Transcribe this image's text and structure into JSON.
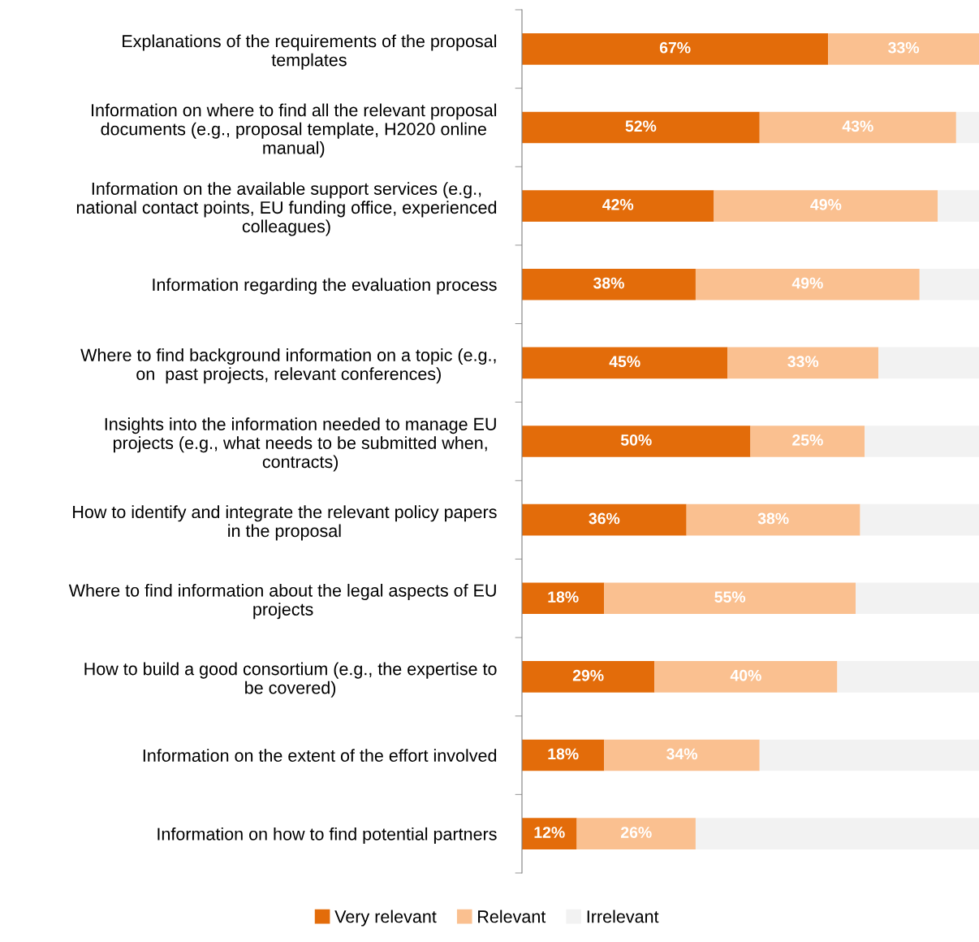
{
  "chart_data": {
    "type": "bar",
    "orientation": "horizontal",
    "stacked": true,
    "tick_labels": "y",
    "legend": "bottom",
    "grid": false,
    "xlim": [
      0,
      100
    ],
    "categories": [
      "Explanations of the requirements of the proposal\ntemplates",
      "Information on where to find all the relevant proposal\ndocuments (e.g., proposal template, H2020 online\nmanual)",
      "Information on the available support services (e.g.,\nnational contact points, EU funding office, experienced\ncolleagues)",
      "Information regarding the evaluation process",
      "Where to find background information on a topic (e.g.,\non  past projects, relevant conferences)",
      "Insights into the information needed to manage EU\nprojects (e.g., what needs to be submitted when,\ncontracts)",
      "How to identify and integrate the relevant policy papers\nin the proposal",
      "Where to find information about the legal aspects of EU\nprojects",
      "How to build a good consortium (e.g., the expertise to\nbe covered)",
      "Information on the extent of the effort involved",
      "Information on how to find potential partners"
    ],
    "series": [
      {
        "name": "Very relevant",
        "color": "#e36c0a",
        "values": [
          67,
          52,
          42,
          38,
          45,
          50,
          36,
          18,
          29,
          18,
          12
        ],
        "value_labels": [
          "67%",
          "52%",
          "42%",
          "38%",
          "45%",
          "50%",
          "36%",
          "18%",
          "29%",
          "18%",
          "12%"
        ]
      },
      {
        "name": "Relevant",
        "color": "#fac090",
        "values": [
          33,
          43,
          49,
          49,
          33,
          25,
          38,
          55,
          40,
          34,
          26
        ],
        "value_labels": [
          "33%",
          "43%",
          "49%",
          "49%",
          "33%",
          "25%",
          "38%",
          "55%",
          "40%",
          "34%",
          "26%"
        ]
      },
      {
        "name": "Irrelevant",
        "color": "#f2f2f2",
        "values": [
          0,
          5,
          9,
          13,
          22,
          25,
          26,
          27,
          31,
          48,
          62
        ]
      }
    ]
  }
}
